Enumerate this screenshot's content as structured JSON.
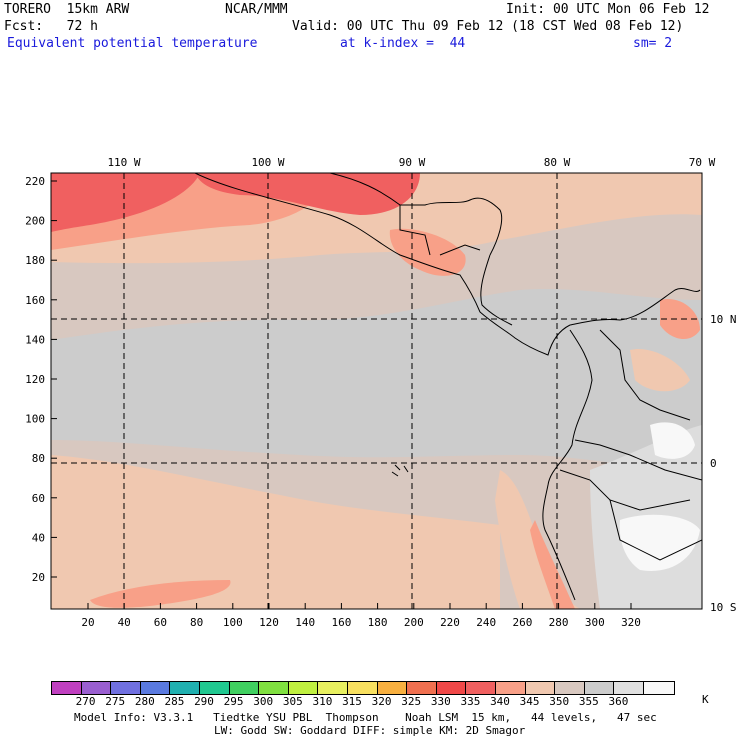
{
  "header": {
    "model": "TORERO  15km ARW",
    "center": "NCAR/MMM",
    "init": "Init: 00 UTC Mon 06 Feb 12",
    "fcst": "Fcst:   72 h",
    "valid": "Valid: 00 UTC Thu 09 Feb 12 (18 CST Wed 08 Feb 12)",
    "field": "Equivalent potential temperature",
    "level": "at k-index =  44",
    "smooth": "sm= 2"
  },
  "map": {
    "lon_labels": [
      "110 W",
      "100 W",
      "90 W",
      "80 W",
      "70 W"
    ],
    "lat_labels": [
      "10 N",
      "0",
      "10 S"
    ],
    "y_ticks": [
      "220",
      "200",
      "180",
      "160",
      "140",
      "120",
      "100",
      "80",
      "60",
      "40",
      "20"
    ],
    "x_ticks": [
      "20",
      "40",
      "60",
      "80",
      "100",
      "120",
      "140",
      "160",
      "180",
      "200",
      "220",
      "240",
      "260",
      "280",
      "300",
      "320"
    ]
  },
  "colorbar": {
    "unit": "K",
    "labels": [
      "270",
      "275",
      "280",
      "285",
      "290",
      "295",
      "300",
      "305",
      "310",
      "315",
      "320",
      "325",
      "330",
      "335",
      "340",
      "345",
      "350",
      "355",
      "360"
    ],
    "colors": [
      "#c040c0",
      "#9a5fd0",
      "#7070e0",
      "#5a7ae0",
      "#20b0b0",
      "#20c890",
      "#40d060",
      "#80e040",
      "#c0f040",
      "#e8f060",
      "#f8e060",
      "#f8b040",
      "#f07050",
      "#f04848",
      "#f06060",
      "#f8a088",
      "#f0c8b0",
      "#d8c8c0",
      "#cccccc",
      "#e0e0e0",
      "#f8f8f8"
    ]
  },
  "footer": {
    "line1": "Model Info: V3.3.1   Tiedtke YSU PBL  Thompson    Noah LSM  15 km,   44 levels,   47 sec",
    "line2": "LW: Godd SW: Goddard DIFF: simple KM: 2D Smagor"
  }
}
